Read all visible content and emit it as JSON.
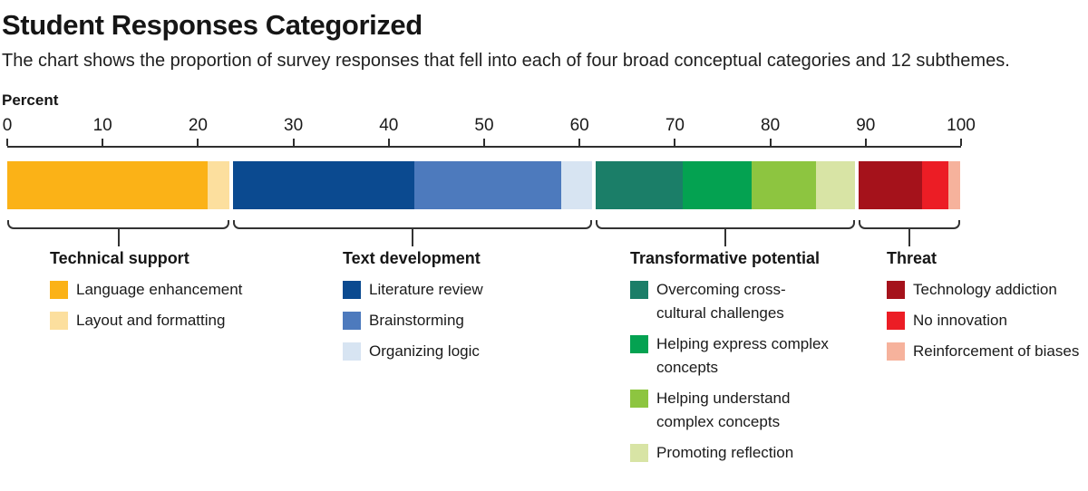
{
  "title": "Student Responses Categorized",
  "subtitle": "The chart shows the proportion of survey responses that fell into each of four broad conceptual categories and 12 subthemes.",
  "axis": {
    "unit_label": "Percent",
    "min": 0,
    "max": 100,
    "ticks": [
      "0",
      "10",
      "20",
      "30",
      "40",
      "50",
      "60",
      "70",
      "80",
      "90",
      "100"
    ],
    "tick_values": [
      0,
      10,
      20,
      30,
      40,
      50,
      60,
      70,
      80,
      90,
      100
    ]
  },
  "chart_data": {
    "type": "bar",
    "orientation": "horizontal-stacked",
    "unit": "percent of responses",
    "xlabel": "Percent",
    "xlim": [
      0,
      100
    ],
    "category_gap_pct": 0.35,
    "line_color": "#333333",
    "categories": [
      {
        "name": "Technical support",
        "total_pct": 23.3,
        "subthemes": [
          {
            "label": "Language enhancement",
            "value_pct": 21.0,
            "color": "#FBB217"
          },
          {
            "label": "Layout and formatting",
            "value_pct": 2.3,
            "color": "#FCDF9E"
          }
        ]
      },
      {
        "name": "Text development",
        "total_pct": 37.7,
        "subthemes": [
          {
            "label": "Literature review",
            "value_pct": 19.0,
            "color": "#0B4A90"
          },
          {
            "label": "Brainstorming",
            "value_pct": 15.4,
            "color": "#4D7ABD"
          },
          {
            "label": "Organizing logic",
            "value_pct": 3.3,
            "color": "#D7E4F2"
          }
        ]
      },
      {
        "name": "Transformative potential",
        "total_pct": 27.2,
        "subthemes": [
          {
            "label": "Overcoming cross-cultural challenges",
            "value_pct": 9.1,
            "color": "#1B7E68"
          },
          {
            "label": "Helping express complex concepts",
            "value_pct": 7.2,
            "color": "#04A251"
          },
          {
            "label": "Helping understand complex concepts",
            "value_pct": 6.8,
            "color": "#8DC540"
          },
          {
            "label": "Promoting reflection",
            "value_pct": 4.1,
            "color": "#D8E4A5"
          }
        ]
      },
      {
        "name": "Threat",
        "total_pct": 10.7,
        "subthemes": [
          {
            "label": "Technology addiction",
            "value_pct": 6.7,
            "color": "#A5121B"
          },
          {
            "label": "No innovation",
            "value_pct": 2.7,
            "color": "#EC1D25"
          },
          {
            "label": "Reinforcement of biases",
            "value_pct": 1.3,
            "color": "#F6B29C"
          }
        ]
      }
    ]
  }
}
